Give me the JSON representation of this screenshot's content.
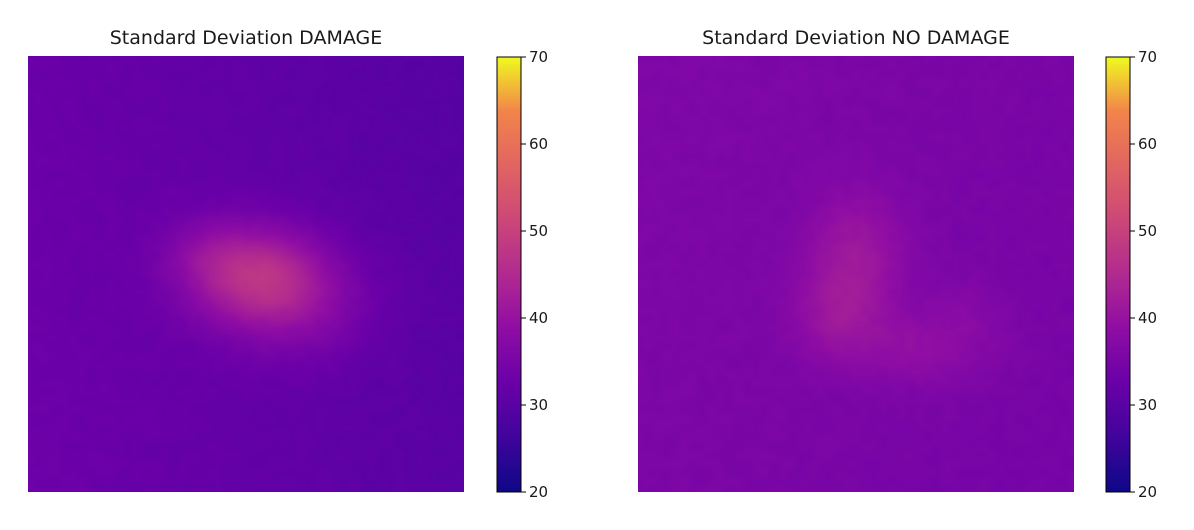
{
  "chart_data": [
    {
      "type": "heatmap",
      "title": "Standard Deviation DAMAGE",
      "colormap": "plasma",
      "colorbar": {
        "vmin": 20,
        "vmax": 70,
        "ticks": [
          20,
          30,
          40,
          50,
          60,
          70
        ]
      },
      "axes_visible": false,
      "background_level": 32,
      "hotspots": [
        {
          "cx": 0.52,
          "cy": 0.5,
          "sx": 0.11,
          "sy": 0.08,
          "amp": 13
        },
        {
          "cx": 0.62,
          "cy": 0.57,
          "sx": 0.12,
          "sy": 0.09,
          "amp": 6
        },
        {
          "cx": 0.4,
          "cy": 0.45,
          "sx": 0.07,
          "sy": 0.06,
          "amp": 3
        }
      ],
      "gradient": {
        "left": 1.5,
        "right": -1.5,
        "top": -1.0,
        "bottom": -0.5
      }
    },
    {
      "type": "heatmap",
      "title": "Standard Deviation NO DAMAGE",
      "colormap": "plasma",
      "colorbar": {
        "vmin": 20,
        "vmax": 70,
        "ticks": [
          20,
          30,
          40,
          50,
          60,
          70
        ]
      },
      "axes_visible": false,
      "background_level": 35,
      "hotspots": [
        {
          "cx": 0.5,
          "cy": 0.46,
          "sx": 0.08,
          "sy": 0.1,
          "amp": 6
        },
        {
          "cx": 0.45,
          "cy": 0.6,
          "sx": 0.07,
          "sy": 0.07,
          "amp": 4
        },
        {
          "cx": 0.65,
          "cy": 0.67,
          "sx": 0.12,
          "sy": 0.06,
          "amp": 4
        },
        {
          "cx": 0.75,
          "cy": 0.57,
          "sx": 0.06,
          "sy": 0.05,
          "amp": 1.5
        }
      ],
      "gradient": {
        "left": 0.5,
        "right": -0.5,
        "top": 0.5,
        "bottom": 0.0
      }
    }
  ]
}
